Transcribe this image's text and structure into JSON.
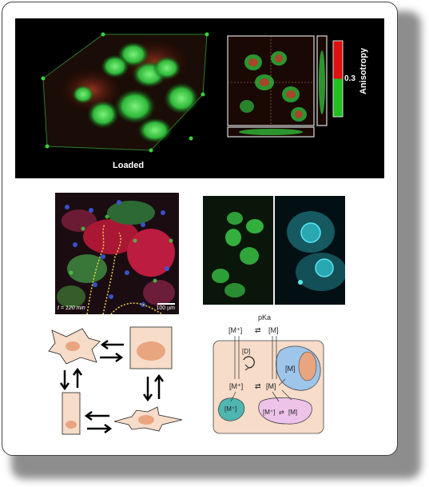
{
  "top_panel": {
    "label_loaded": "Loaded",
    "label_anisotropy": "Anisotropy",
    "label_threshold": "0.3"
  },
  "mid_left": {
    "time_label": "t = 120 min",
    "scale_label": "100 µm"
  },
  "bottom_right": {
    "pka_label": "pKa",
    "top_left_species": "[M⁺]",
    "top_right_species": "[M]",
    "drug_label": "[D]",
    "mid_left_species": "[M⁺]",
    "mid_right_species": "[M]",
    "blue_compartment_species": "[M]",
    "teal_compartment_species": "[M⁺]",
    "pink_left_species": "[M⁺]",
    "pink_right_species": "[M]",
    "exchange_arrow": "⇄"
  },
  "colors": {
    "cell_fill": "#f6dcc9",
    "nucleus_fill": "#e9a580",
    "green_fluor": "#2ecf3a",
    "red_fluor": "#cc2a1a",
    "cyan_fluor": "#33d6dd",
    "compartment_blue": "#9ec5ea",
    "compartment_teal": "#4fb6b0",
    "compartment_pink": "#eec3ea"
  }
}
